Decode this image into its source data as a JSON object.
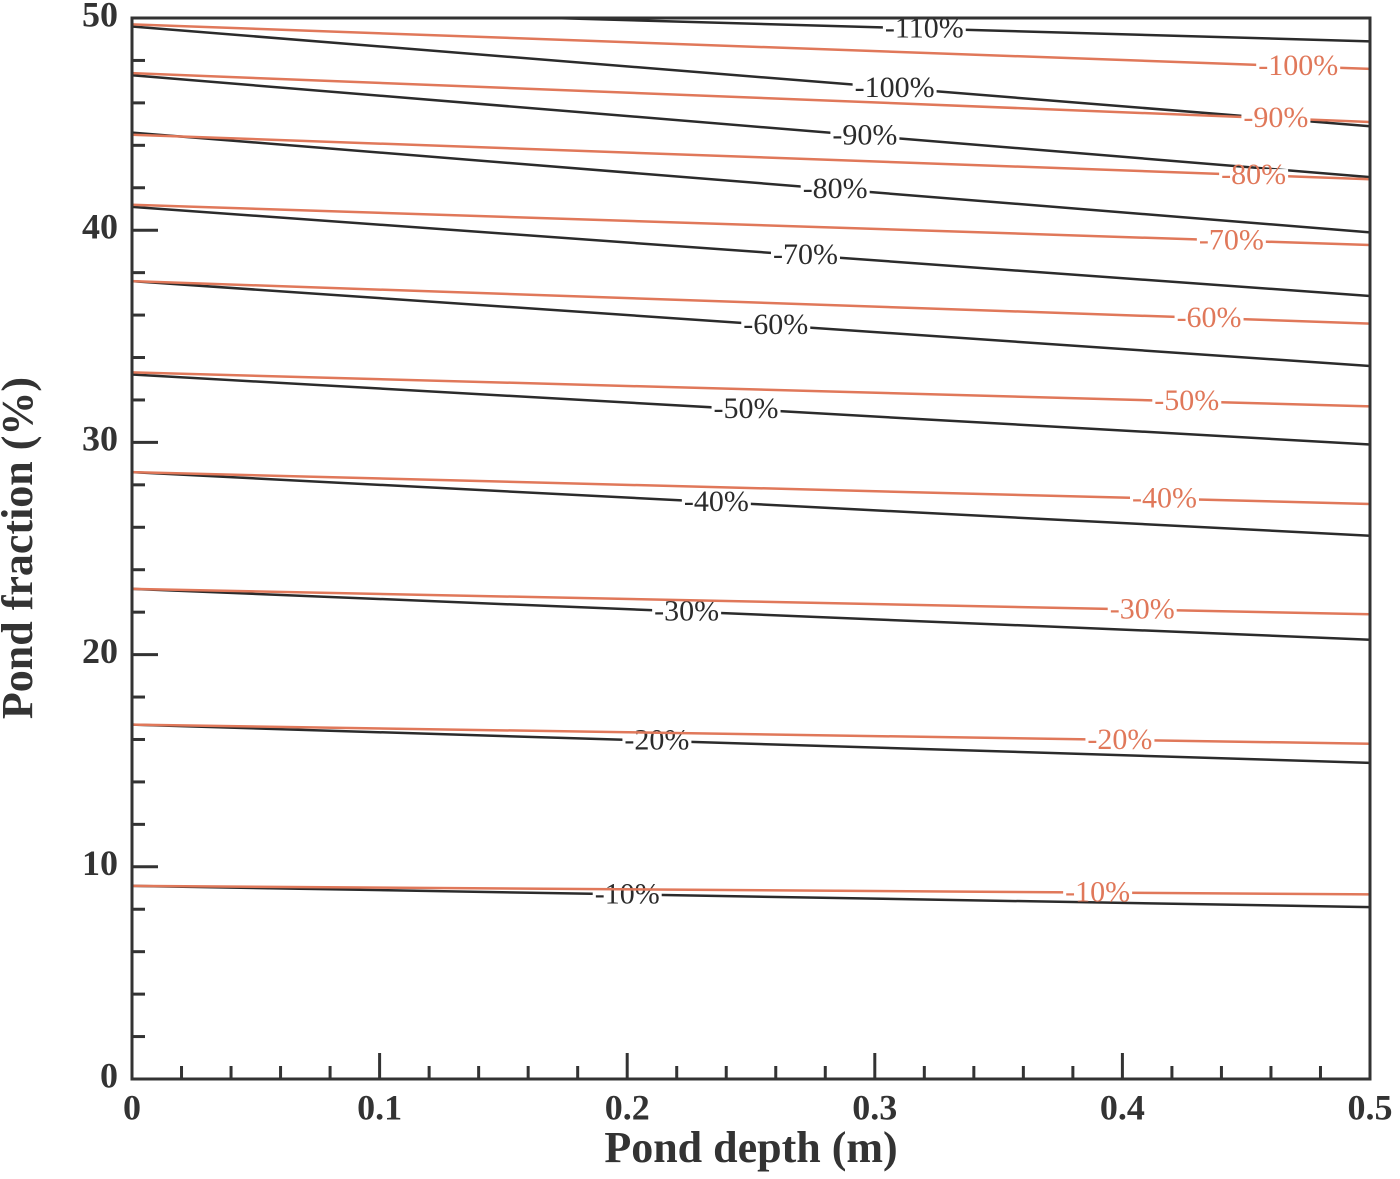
{
  "chart_data": {
    "type": "contour",
    "xlabel": "Pond depth (m)",
    "ylabel": "Pond fraction (%)",
    "xlim": [
      0,
      0.5
    ],
    "ylim": [
      0,
      50
    ],
    "xticks": [
      0,
      0.1,
      0.2,
      0.3,
      0.4,
      0.5
    ],
    "yticks": [
      0,
      10,
      20,
      30,
      40,
      50
    ],
    "xminorticks": [
      0.02,
      0.04,
      0.06,
      0.08,
      0.12,
      0.14,
      0.16,
      0.18,
      0.22,
      0.24,
      0.26,
      0.28,
      0.32,
      0.34,
      0.36,
      0.38,
      0.42,
      0.44,
      0.46,
      0.48
    ],
    "yminorticks": [
      2,
      4,
      6,
      8,
      12,
      14,
      16,
      18,
      22,
      24,
      26,
      28,
      32,
      34,
      36,
      38,
      42,
      44,
      46,
      48
    ],
    "contour_sets": [
      {
        "color": "#2b2b2b",
        "lines": [
          {
            "label": "-10%",
            "x": [
              0,
              0.5
            ],
            "y": [
              9.1,
              8.1
            ]
          },
          {
            "label": "-20%",
            "x": [
              0,
              0.5
            ],
            "y": [
              16.7,
              14.9
            ]
          },
          {
            "label": "-30%",
            "x": [
              0,
              0.5
            ],
            "y": [
              23.1,
              20.7
            ]
          },
          {
            "label": "-40%",
            "x": [
              0,
              0.5
            ],
            "y": [
              28.6,
              25.6
            ]
          },
          {
            "label": "-50%",
            "x": [
              0,
              0.5
            ],
            "y": [
              33.2,
              29.9
            ]
          },
          {
            "label": "-60%",
            "x": [
              0,
              0.5
            ],
            "y": [
              37.6,
              33.6
            ]
          },
          {
            "label": "-70%",
            "x": [
              0,
              0.5
            ],
            "y": [
              41.1,
              36.9
            ]
          },
          {
            "label": "-80%",
            "x": [
              0,
              0.5
            ],
            "y": [
              44.6,
              39.9
            ]
          },
          {
            "label": "-90%",
            "x": [
              0,
              0.5
            ],
            "y": [
              47.3,
              42.5
            ]
          },
          {
            "label": "-100%",
            "x": [
              0,
              0.5
            ],
            "y": [
              49.6,
              44.9
            ]
          },
          {
            "label": "-110%",
            "x": [
              0.17,
              0.5
            ],
            "y": [
              50,
              48.9
            ]
          }
        ]
      },
      {
        "color": "#e0785a",
        "lines": [
          {
            "label": "-10%",
            "x": [
              0,
              0.5
            ],
            "y": [
              9.1,
              8.7
            ]
          },
          {
            "label": "-20%",
            "x": [
              0,
              0.5
            ],
            "y": [
              16.7,
              15.8
            ]
          },
          {
            "label": "-30%",
            "x": [
              0,
              0.5
            ],
            "y": [
              23.1,
              21.9
            ]
          },
          {
            "label": "-40%",
            "x": [
              0,
              0.5
            ],
            "y": [
              28.6,
              27.1
            ]
          },
          {
            "label": "-50%",
            "x": [
              0,
              0.5
            ],
            "y": [
              33.3,
              31.7
            ]
          },
          {
            "label": "-60%",
            "x": [
              0,
              0.5
            ],
            "y": [
              37.6,
              35.6
            ]
          },
          {
            "label": "-70%",
            "x": [
              0,
              0.5
            ],
            "y": [
              41.2,
              39.3
            ]
          },
          {
            "label": "-80%",
            "x": [
              0,
              0.5
            ],
            "y": [
              44.5,
              42.4
            ]
          },
          {
            "label": "-90%",
            "x": [
              0,
              0.5
            ],
            "y": [
              47.4,
              45.1
            ]
          },
          {
            "label": "-100%",
            "x": [
              0,
              0.5
            ],
            "y": [
              49.7,
              47.6
            ]
          }
        ]
      }
    ]
  }
}
